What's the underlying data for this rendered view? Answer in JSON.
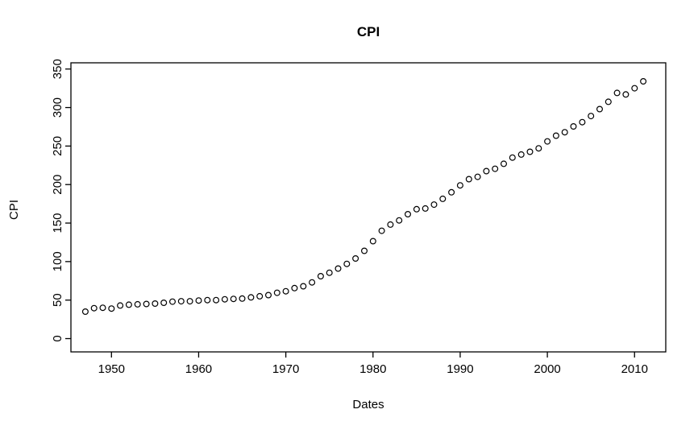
{
  "figure": {
    "background": "#ffffff",
    "foreground": "#000000"
  },
  "chart_data": {
    "type": "scatter",
    "title": "CPI",
    "xlabel": "Dates",
    "ylabel": "CPI",
    "marker": "open-circle",
    "marker_color": "#000000",
    "grid": false,
    "legend": null,
    "xlim": [
      1945.4,
      2012.6
    ],
    "ylim": [
      0,
      350
    ],
    "xticks": [
      1950,
      1960,
      1970,
      1980,
      1990,
      2000,
      2010
    ],
    "yticks": [
      0,
      50,
      100,
      150,
      200,
      250,
      300,
      350
    ],
    "x": [
      1947,
      1948,
      1949,
      1950,
      1951,
      1952,
      1953,
      1954,
      1955,
      1956,
      1957,
      1958,
      1959,
      1960,
      1961,
      1962,
      1963,
      1964,
      1965,
      1966,
      1967,
      1968,
      1969,
      1970,
      1971,
      1972,
      1973,
      1974,
      1975,
      1976,
      1977,
      1978,
      1979,
      1980,
      1981,
      1982,
      1983,
      1984,
      1985,
      1986,
      1987,
      1988,
      1989,
      1990,
      1991,
      1992,
      1993,
      1994,
      1995,
      1996,
      1997,
      1998,
      1999,
      2000,
      2001,
      2002,
      2003,
      2004,
      2005,
      2006,
      2007,
      2008,
      2009,
      2010,
      2011
    ],
    "y": [
      35,
      39.5,
      40,
      39,
      43,
      44,
      44.5,
      45,
      45.5,
      46.5,
      48,
      48.5,
      48.5,
      49.5,
      50,
      50,
      51,
      51.5,
      52,
      53.5,
      55,
      56.5,
      59.5,
      61.5,
      65.5,
      68,
      73,
      81,
      85.5,
      91,
      97,
      104,
      114,
      126.5,
      140,
      148,
      153.5,
      161.5,
      168,
      169,
      174,
      181.5,
      190,
      199,
      207,
      210,
      217.5,
      220.5,
      227,
      235,
      239,
      242.5,
      247,
      256,
      263.5,
      268,
      275.5,
      281,
      289,
      298,
      307.5,
      319,
      317,
      325,
      334
    ]
  }
}
